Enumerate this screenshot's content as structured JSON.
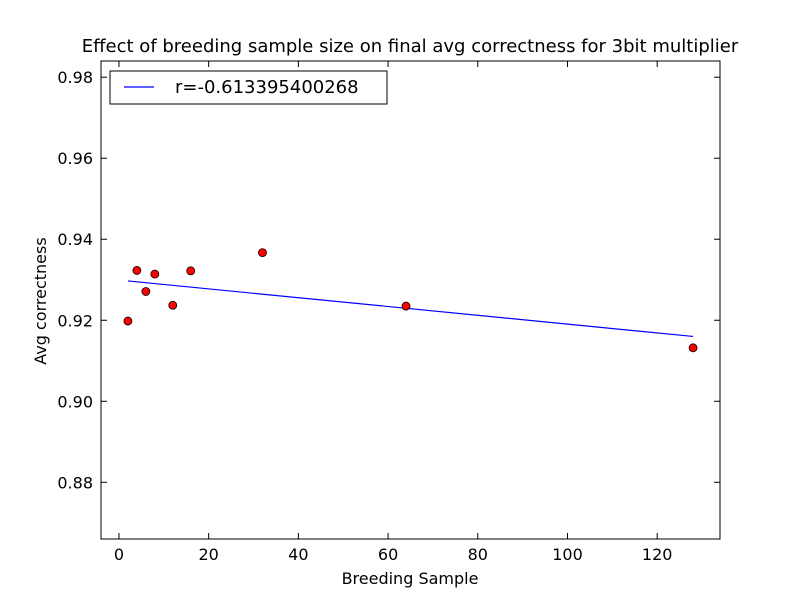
{
  "chart_data": {
    "type": "scatter",
    "title": "Effect of breeding sample size on final avg correctness for 3bit multiplier",
    "xlabel": "Breeding Sample",
    "ylabel": "Avg correctness",
    "xlim": [
      -4,
      134
    ],
    "ylim": [
      0.866,
      0.984
    ],
    "xticks": [
      0,
      20,
      40,
      60,
      80,
      100,
      120
    ],
    "xtick_labels": [
      "0",
      "20",
      "40",
      "60",
      "80",
      "100",
      "120"
    ],
    "yticks": [
      0.88,
      0.9,
      0.92,
      0.94,
      0.96,
      0.98
    ],
    "ytick_labels": [
      "0.88",
      "0.90",
      "0.92",
      "0.94",
      "0.96",
      "0.98"
    ],
    "grid": false,
    "legend_position": "top-left",
    "points": [
      {
        "x": 2,
        "y": 0.9198
      },
      {
        "x": 4,
        "y": 0.9323
      },
      {
        "x": 6,
        "y": 0.9271
      },
      {
        "x": 8,
        "y": 0.9314
      },
      {
        "x": 12,
        "y": 0.9237
      },
      {
        "x": 16,
        "y": 0.9322
      },
      {
        "x": 32,
        "y": 0.9367
      },
      {
        "x": 64,
        "y": 0.9235
      },
      {
        "x": 128,
        "y": 0.9132
      }
    ],
    "series": [
      {
        "name": "r=-0.613395400268",
        "kind": "fit-line",
        "x": [
          2,
          128
        ],
        "y": [
          0.9297,
          0.916
        ],
        "color": "#0000ff"
      }
    ],
    "point_color": "#ff0000"
  }
}
